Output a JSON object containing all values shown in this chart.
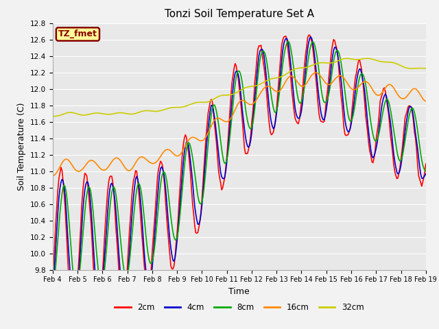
{
  "title": "Tonzi Soil Temperature Set A",
  "xlabel": "Time",
  "ylabel": "Soil Temperature (C)",
  "ylim": [
    9.8,
    12.8
  ],
  "xlim": [
    0,
    360
  ],
  "xtick_labels": [
    "Feb 4",
    "Feb 5",
    "Feb 6",
    "Feb 7",
    "Feb 8",
    "Feb 9",
    "Feb 10",
    "Feb 11",
    "Feb 12",
    "Feb 13",
    "Feb 14",
    "Feb 15",
    "Feb 16",
    "Feb 17",
    "Feb 18",
    "Feb 19"
  ],
  "xtick_positions": [
    0,
    24,
    48,
    72,
    96,
    120,
    144,
    168,
    192,
    216,
    240,
    264,
    288,
    312,
    336,
    360
  ],
  "colors": {
    "2cm": "#ff0000",
    "4cm": "#0000cc",
    "8cm": "#00aa00",
    "16cm": "#ff8800",
    "32cm": "#cccc00"
  },
  "line_width": 1.2,
  "legend_labels": [
    "2cm",
    "4cm",
    "8cm",
    "16cm",
    "32cm"
  ],
  "annotation_text": "TZ_fmet",
  "annotation_bg": "#ffff99",
  "annotation_edge": "#880000",
  "bg_color": "#e8e8e8"
}
